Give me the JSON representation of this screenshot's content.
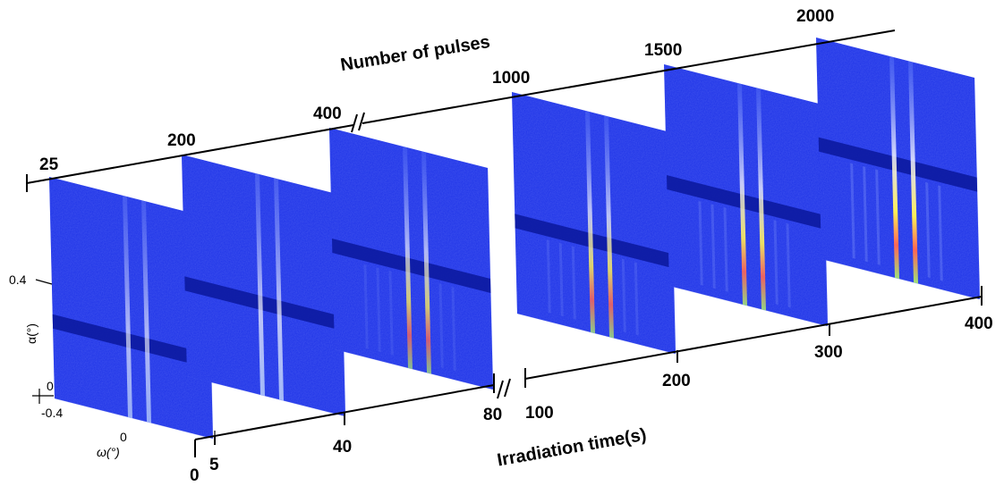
{
  "top_axis": {
    "label": "Number of pulses",
    "ticks": [
      "25",
      "200",
      "400",
      "1000",
      "1500",
      "2000"
    ]
  },
  "bottom_axis": {
    "label": "Irradiation time(s)",
    "ticks": [
      "0",
      "5",
      "40",
      "80",
      "100",
      "200",
      "300",
      "400"
    ]
  },
  "panel_axes": {
    "alpha_label": "α(°)",
    "alpha_ticks": [
      "0.4",
      "0",
      "-0.4"
    ],
    "omega_label": "ω(°)",
    "omega_ticks": [
      "0"
    ]
  }
}
